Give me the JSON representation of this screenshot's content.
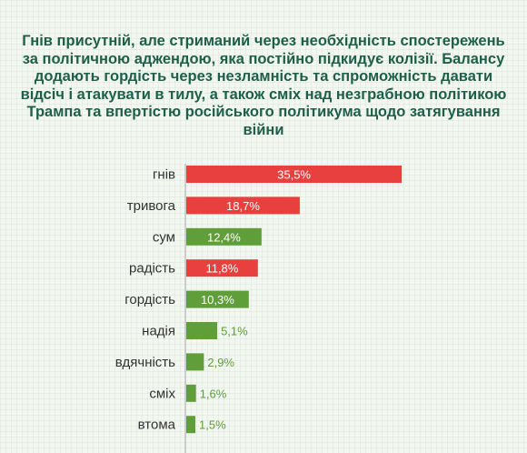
{
  "colors": {
    "negative": "#e8403f",
    "positive": "#5f9e38",
    "title": "#1f5f4a"
  },
  "chart_data": {
    "type": "bar",
    "orientation": "horizontal",
    "title": "Гнів присутній, але стриманий через необхідність спостережень за політичною аджендою, яка постійно підкидує колізії. Балансу додають гордість через незламність та спроможність давати відсіч і атакувати в тилу, а також сміх над незграбною політикою Трампа та впертістю російського політикума щодо затягування війни",
    "categories": [
      "гнів",
      "тривога",
      "сум",
      "радість",
      "гордість",
      "надія",
      "вдячність",
      "сміх",
      "втома"
    ],
    "values": [
      35.5,
      18.7,
      12.4,
      11.8,
      10.3,
      5.1,
      2.9,
      1.6,
      1.5
    ],
    "value_labels": [
      "35,5%",
      "18,7%",
      "12,4%",
      "11,8%",
      "10,3%",
      "5,1%",
      "2,9%",
      "1,6%",
      "1,5%"
    ],
    "bar_colors": [
      "#e8403f",
      "#e8403f",
      "#5f9e38",
      "#e8403f",
      "#5f9e38",
      "#5f9e38",
      "#5f9e38",
      "#5f9e38",
      "#5f9e38"
    ],
    "xlim": [
      0,
      40
    ],
    "grid": false,
    "legend": "none"
  }
}
